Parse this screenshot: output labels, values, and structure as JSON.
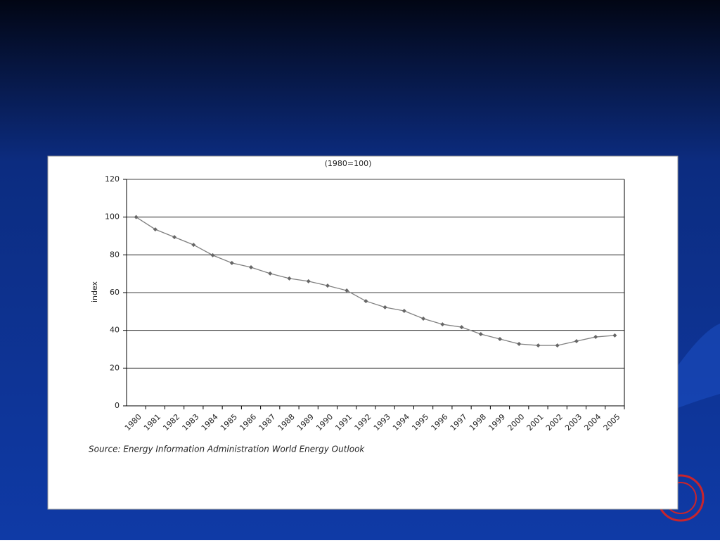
{
  "chart_data": {
    "type": "line",
    "title": "(1980=100)",
    "y_label": "index",
    "source": "Source: Energy Information Administration World Energy Outlook",
    "categories": [
      "1980",
      "1981",
      "1982",
      "1983",
      "1984",
      "1985",
      "1986",
      "1987",
      "1988",
      "1989",
      "1990",
      "1991",
      "1992",
      "1993",
      "1994",
      "1995",
      "1996",
      "1997",
      "1998",
      "1999",
      "2000",
      "2001",
      "2002",
      "2003",
      "2004",
      "2005"
    ],
    "values": [
      100,
      93.5,
      89.4,
      85.3,
      79.8,
      75.7,
      73.4,
      70.1,
      67.5,
      66,
      63.7,
      61.1,
      55.5,
      52.2,
      50.3,
      46.2,
      43.2,
      41.7,
      38,
      35.4,
      32.8,
      32,
      32,
      34.3,
      36.5,
      37.3
    ],
    "color": "#808080",
    "ylim": [
      0,
      120
    ],
    "yticks": [
      0,
      20,
      40,
      60,
      80,
      100,
      120
    ],
    "grid": true
  }
}
